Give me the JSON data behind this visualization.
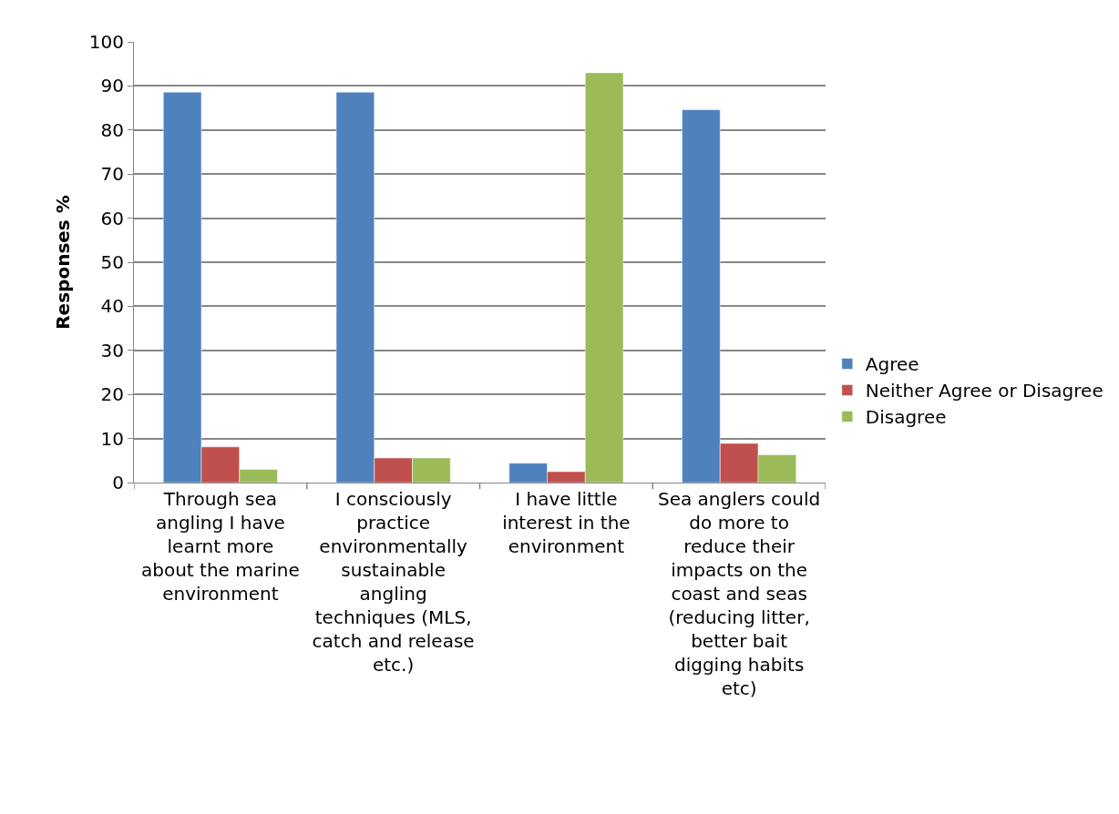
{
  "chart_data": {
    "type": "bar",
    "ylabel": "Responses %",
    "categories": [
      "Through sea\nangling I have\nlearnt more\nabout the marine\nenvironment",
      "I consciously\npractice\nenvironmentally\nsustainable\nangling\ntechniques (MLS,\ncatch and release\netc.)",
      "I have little\ninterest in the\nenvironment",
      "Sea anglers could\ndo more to\nreduce their\nimpacts on the\ncoast and seas\n(reducing litter,\nbetter bait\ndigging habits\netc)"
    ],
    "series": [
      {
        "name": "Agree",
        "color": "#4f81bd",
        "values": [
          88.6,
          88.6,
          4.4,
          84.6
        ]
      },
      {
        "name": "Neither Agree or Disagree",
        "color": "#c0504d",
        "values": [
          8.1,
          5.6,
          2.5,
          8.9
        ]
      },
      {
        "name": "Disagree",
        "color": "#9bbb59",
        "values": [
          3.0,
          5.6,
          93.0,
          6.3
        ]
      }
    ],
    "ylim": [
      0,
      100
    ],
    "yticks": [
      0,
      10,
      20,
      30,
      40,
      50,
      60,
      70,
      80,
      90,
      100
    ],
    "grid": "y",
    "legend": "right"
  }
}
